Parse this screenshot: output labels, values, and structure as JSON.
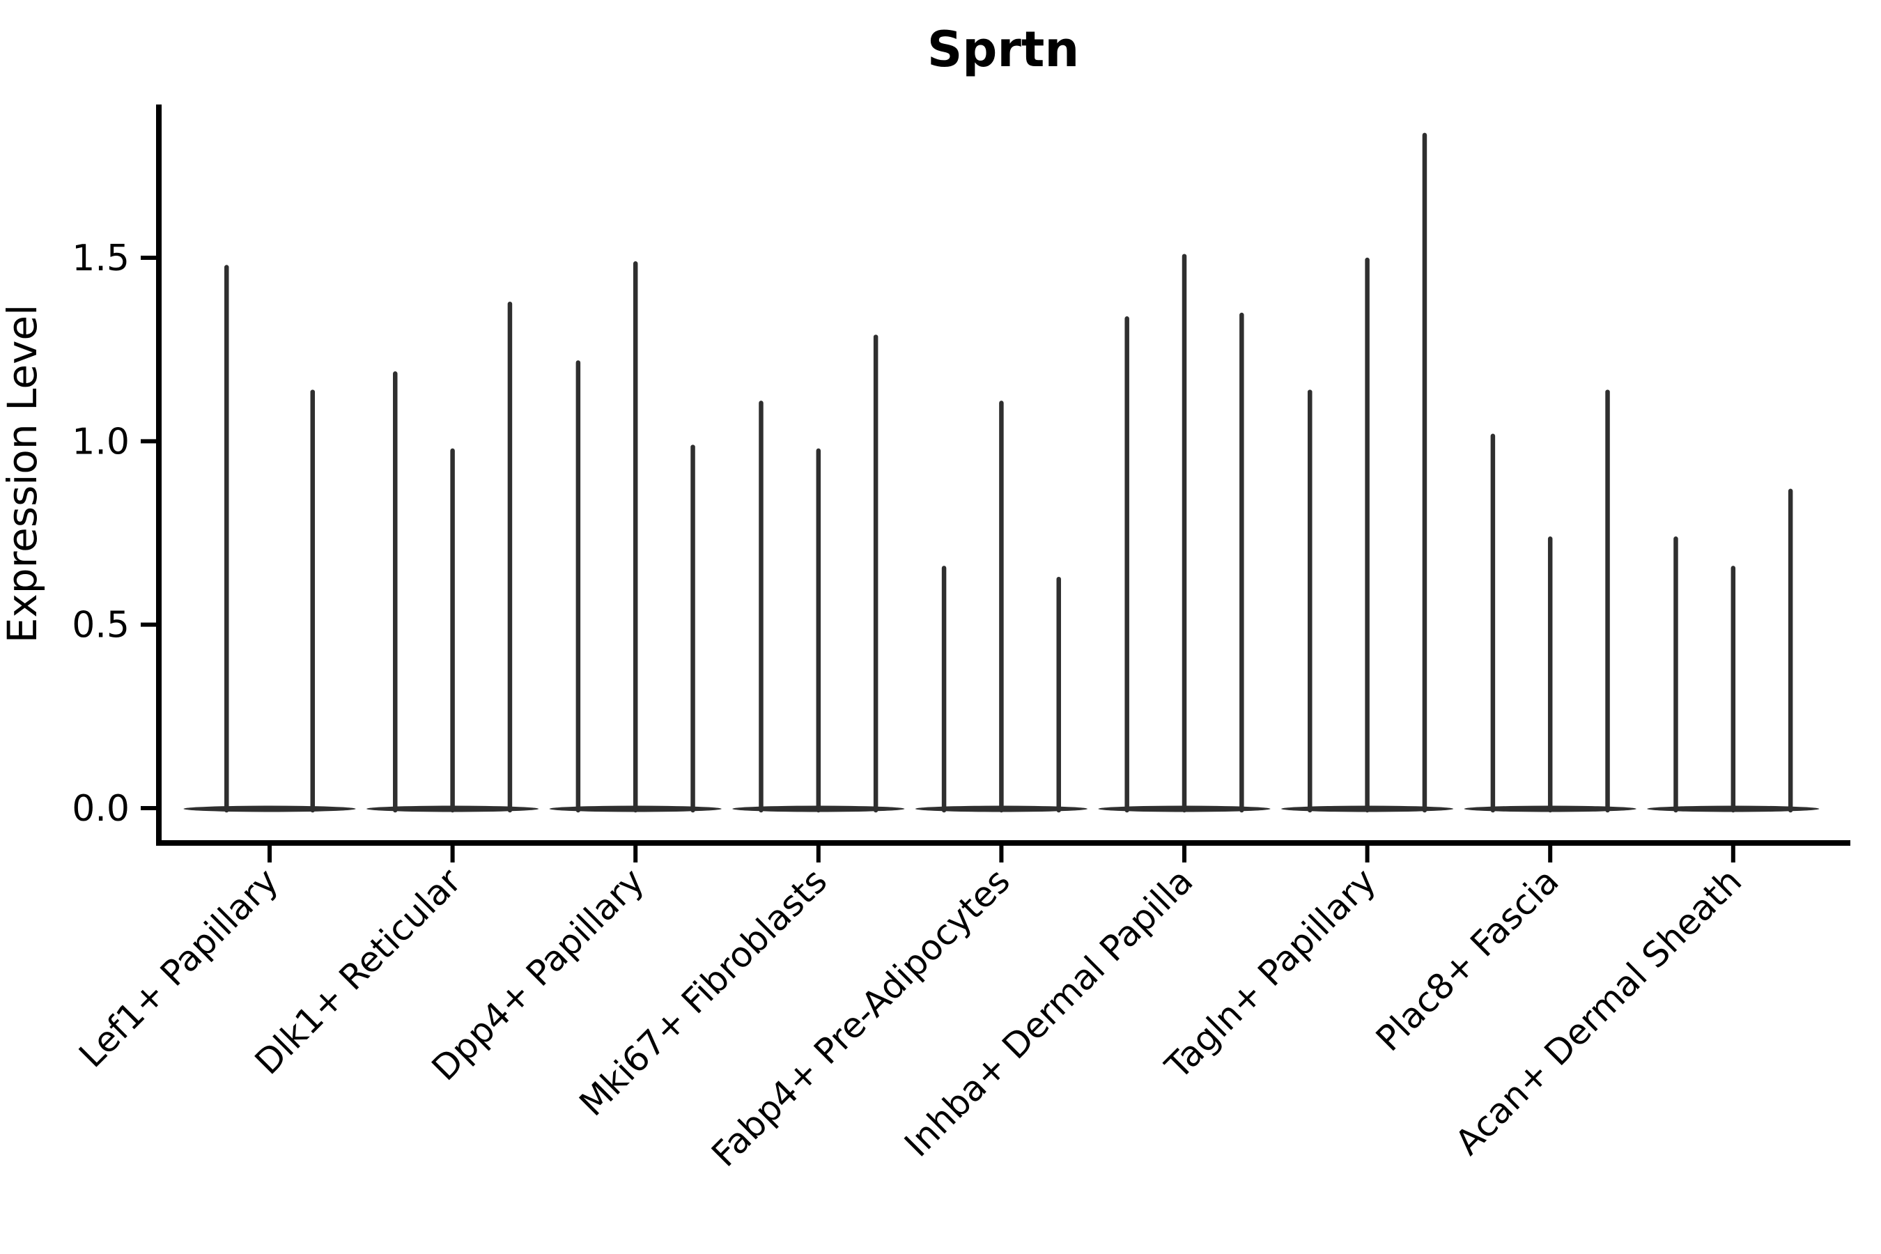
{
  "chart_data": {
    "type": "violin",
    "title": "Sprtn",
    "xlabel": "",
    "ylabel": "Expression Level",
    "ylim": [
      0.0,
      1.92
    ],
    "yticks": [
      "0.0",
      "0.5",
      "1.0",
      "1.5"
    ],
    "grid": false,
    "legend": null,
    "categories": [
      "Lef1+ Papillary",
      "Dlk1+ Reticular",
      "Dpp4+ Papillary",
      "Mki67+ Fibroblasts",
      "Fabp4+ Pre-Adipocytes",
      "Inhba+ Dermal Papilla",
      "Tagln+ Papillary",
      "Plac8+ Fascia",
      "Acan+ Dermal Sheath"
    ],
    "groups": [
      {
        "label": "Lef1+ Papillary",
        "violin_peaks": [
          1.48,
          1.14
        ]
      },
      {
        "label": "Dlk1+ Reticular",
        "violin_peaks": [
          1.19,
          0.98,
          1.38
        ]
      },
      {
        "label": "Dpp4+ Papillary",
        "violin_peaks": [
          1.22,
          1.49,
          0.99
        ]
      },
      {
        "label": "Mki67+ Fibroblasts",
        "violin_peaks": [
          1.11,
          0.98,
          1.29
        ]
      },
      {
        "label": "Fabp4+ Pre-Adipocytes",
        "violin_peaks": [
          0.66,
          1.11,
          0.63
        ]
      },
      {
        "label": "Inhba+ Dermal Papilla",
        "violin_peaks": [
          1.34,
          1.51,
          1.35
        ]
      },
      {
        "label": "Tagln+ Papillary",
        "violin_peaks": [
          1.14,
          1.5,
          1.84
        ]
      },
      {
        "label": "Plac8+ Fascia",
        "violin_peaks": [
          1.02,
          0.74,
          1.14
        ]
      },
      {
        "label": "Acan+ Dermal Sheath",
        "violin_peaks": [
          0.74,
          0.66,
          0.87
        ]
      }
    ],
    "style_notes": "mostly-zero expression: each violin is a flat base lens at 0 with a thin spike to its max",
    "colors": {
      "violin": "#2f2f2f",
      "axis": "#000000",
      "text": "#000000",
      "background": "#ffffff"
    }
  }
}
